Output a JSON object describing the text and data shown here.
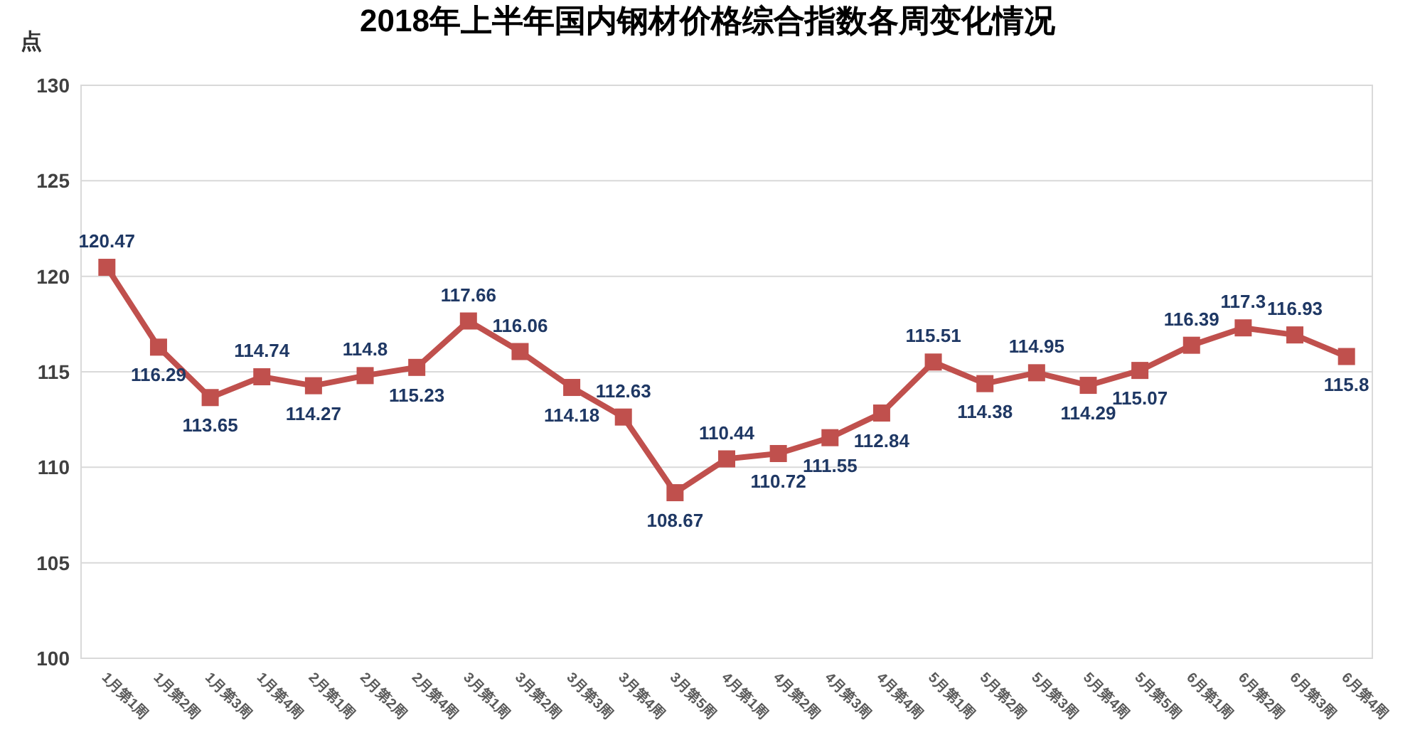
{
  "chart_data": {
    "type": "line",
    "title": "2018年上半年国内钢材价格综合指数各周变化情况",
    "ylabel": "点",
    "categories": [
      "1月第1周",
      "1月第2周",
      "1月第3周",
      "1月第4周",
      "2月第1周",
      "2月第2周",
      "2月第4周",
      "3月第1周",
      "3月第2周",
      "3月第3周",
      "3月第4周",
      "3月第5周",
      "4月第1周",
      "4月第2周",
      "4月第3周",
      "4月第4周",
      "5月第1周",
      "5月第2周",
      "5月第3周",
      "5月第4周",
      "5月第5周",
      "6月第1周",
      "6月第2周",
      "6月第3周",
      "6月第4周"
    ],
    "series": [
      {
        "color": "#c0504d",
        "values": [
          120.47,
          116.29,
          113.65,
          114.74,
          114.27,
          114.8,
          115.23,
          117.66,
          116.06,
          114.18,
          112.63,
          108.67,
          110.44,
          110.72,
          111.55,
          112.84,
          115.51,
          114.38,
          114.95,
          114.29,
          115.07,
          116.39,
          117.3,
          116.93,
          115.8
        ]
      }
    ],
    "ylim": [
      100,
      130
    ],
    "yticks": [
      100,
      105,
      110,
      115,
      120,
      125,
      130
    ],
    "grid": "y",
    "data_labels": true,
    "marker": "square",
    "line_style": "solid"
  }
}
